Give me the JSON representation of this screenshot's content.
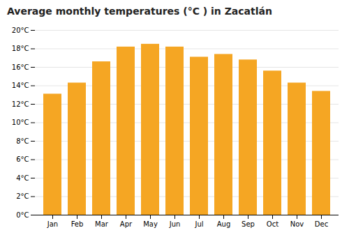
{
  "chart_data": {
    "type": "bar",
    "title": "Average monthly temperatures (°C ) in Zacatlán",
    "categories": [
      "Jan",
      "Feb",
      "Mar",
      "Apr",
      "May",
      "Jun",
      "Jul",
      "Aug",
      "Sep",
      "Oct",
      "Nov",
      "Dec"
    ],
    "values": [
      13.1,
      14.3,
      16.6,
      18.2,
      18.5,
      18.2,
      17.1,
      17.4,
      16.8,
      15.6,
      14.3,
      13.4
    ],
    "color": "#F5A623",
    "ylim": [
      0,
      20
    ],
    "yticks": [
      {
        "value": 0,
        "label": "0°C"
      },
      {
        "value": 2,
        "label": "2°C"
      },
      {
        "value": 4,
        "label": "4°C"
      },
      {
        "value": 6,
        "label": "6°C"
      },
      {
        "value": 8,
        "label": "8°C"
      },
      {
        "value": 10,
        "label": "10°C"
      },
      {
        "value": 12,
        "label": "12°C"
      },
      {
        "value": 14,
        "label": "14°C"
      },
      {
        "value": 16,
        "label": "16°C"
      },
      {
        "value": 18,
        "label": "18°C"
      },
      {
        "value": 20,
        "label": "20°C"
      }
    ],
    "grid": true
  }
}
